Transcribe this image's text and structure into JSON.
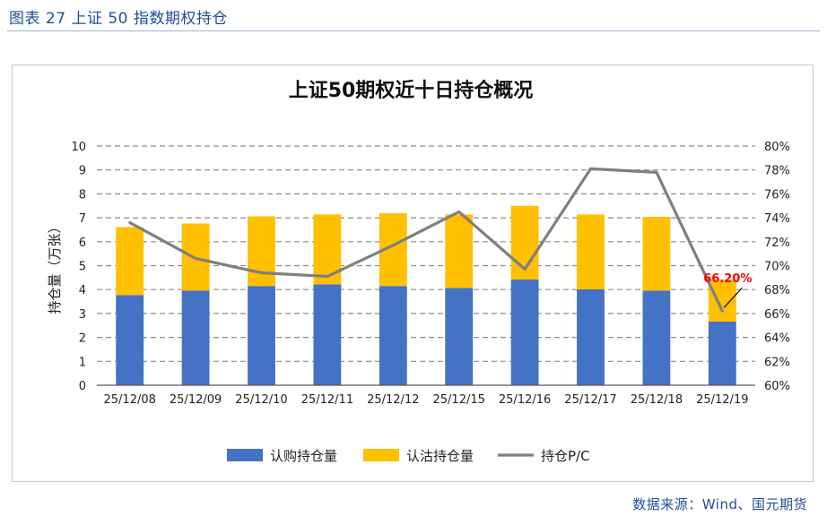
{
  "header": {
    "caption": "图表 27 上证 50 指数期权持仓",
    "source": "数据来源：Wind、国元期货"
  },
  "colors": {
    "call": "#4472c4",
    "put": "#ffc000",
    "pc_line": "#7f7f7f",
    "annotation": "#ff0000",
    "caption": "#1f4e9c"
  },
  "chart_data": {
    "type": "bar",
    "stacked": true,
    "title": "上证50期权近十日持仓概况",
    "ylabel": "持仓量（万张）",
    "ylim": [
      0,
      10
    ],
    "y_ticks": [
      "0",
      "1",
      "2",
      "3",
      "4",
      "5",
      "6",
      "7",
      "8",
      "9",
      "10"
    ],
    "y2lim": [
      60,
      80
    ],
    "y2_ticks": [
      "60%",
      "62%",
      "64%",
      "66%",
      "68%",
      "70%",
      "72%",
      "74%",
      "76%",
      "78%",
      "80%"
    ],
    "grid": true,
    "legend_position": "bottom",
    "categories": [
      "25/12/08",
      "25/12/09",
      "25/12/10",
      "25/12/11",
      "25/12/12",
      "25/12/15",
      "25/12/16",
      "25/12/17",
      "25/12/18",
      "25/12/19"
    ],
    "series": [
      {
        "name": "认购持仓量",
        "type": "bar",
        "axis": "left",
        "values": [
          3.77,
          3.96,
          4.15,
          4.22,
          4.15,
          4.07,
          4.42,
          4.01,
          3.96,
          2.66
        ]
      },
      {
        "name": "认沽持仓量",
        "type": "bar",
        "axis": "left",
        "values": [
          2.84,
          2.8,
          2.91,
          2.92,
          3.04,
          3.07,
          3.08,
          3.13,
          3.08,
          1.76
        ]
      },
      {
        "name": "持仓P/C",
        "type": "line",
        "axis": "right",
        "values": [
          73.6,
          70.6,
          69.4,
          69.1,
          71.7,
          74.5,
          69.7,
          78.1,
          77.8,
          66.2
        ]
      }
    ],
    "annotations": [
      {
        "category": "25/12/19",
        "series": "持仓P/C",
        "text": "66.20%"
      }
    ]
  }
}
